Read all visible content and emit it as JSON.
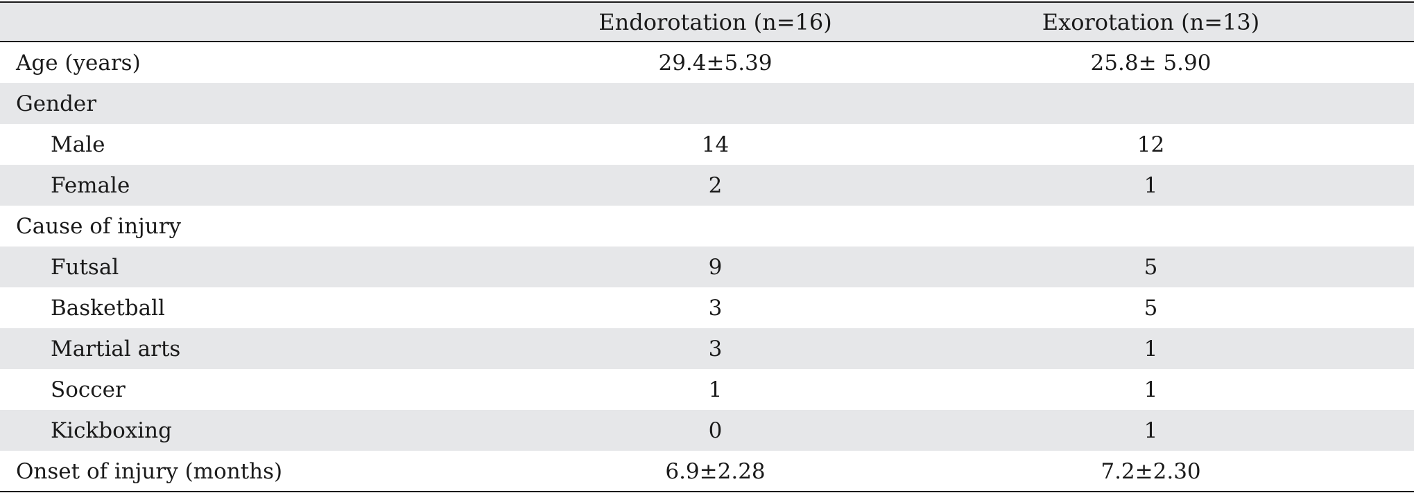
{
  "table": {
    "columns": [
      "",
      "Endorotation (n=16)",
      "Exorotation (n=13)"
    ],
    "rows": [
      {
        "label": "Age (years)",
        "endo": "29.4±5.39",
        "exo": "25.8± 5.90",
        "indent": false
      },
      {
        "label": "Gender",
        "endo": "",
        "exo": "",
        "indent": false
      },
      {
        "label": "Male",
        "endo": "14",
        "exo": "12",
        "indent": true
      },
      {
        "label": "Female",
        "endo": "2",
        "exo": "1",
        "indent": true
      },
      {
        "label": "Cause of injury",
        "endo": "",
        "exo": "",
        "indent": false
      },
      {
        "label": "Futsal",
        "endo": "9",
        "exo": "5",
        "indent": true
      },
      {
        "label": "Basketball",
        "endo": "3",
        "exo": "5",
        "indent": true
      },
      {
        "label": "Martial arts",
        "endo": "3",
        "exo": "1",
        "indent": true
      },
      {
        "label": "Soccer",
        "endo": "1",
        "exo": "1",
        "indent": true
      },
      {
        "label": "Kickboxing",
        "endo": "0",
        "exo": "1",
        "indent": true
      },
      {
        "label": "Onset of injury (months)",
        "endo": "6.9±2.28",
        "exo": "7.2±2.30",
        "indent": false
      }
    ]
  }
}
